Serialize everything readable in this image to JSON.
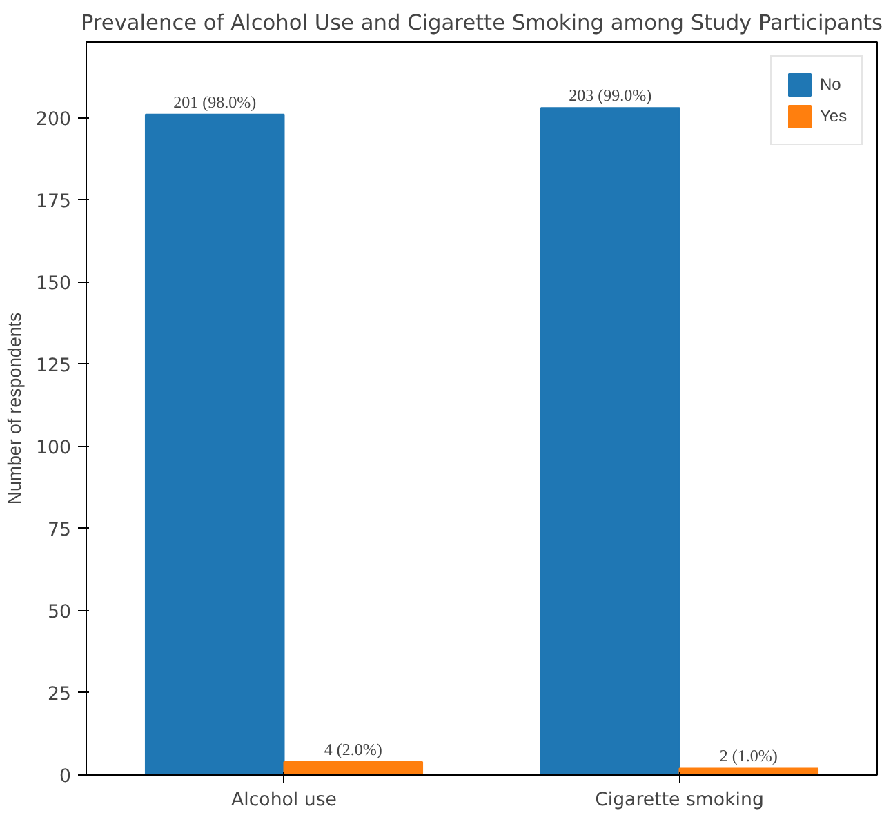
{
  "chart_data": {
    "type": "bar",
    "title": "Prevalence of Alcohol Use and Cigarette Smoking among Study Participants",
    "ylabel": "Number of respondents",
    "categories": [
      "Alcohol use",
      "Cigarette smoking"
    ],
    "series": [
      {
        "name": "No",
        "color": "#1f77b4",
        "values": [
          201,
          203
        ],
        "value_labels": [
          "201 (98.0%)",
          "203 (99.0%)"
        ]
      },
      {
        "name": "Yes",
        "color": "#ff7f0e",
        "values": [
          4,
          2
        ],
        "value_labels": [
          "4 (2.0%)",
          "2 (1.0%)"
        ]
      }
    ],
    "ylim": [
      0,
      223
    ],
    "yticks": [
      0,
      25,
      50,
      75,
      100,
      125,
      150,
      175,
      200
    ],
    "grid": false,
    "legend": "top right"
  }
}
